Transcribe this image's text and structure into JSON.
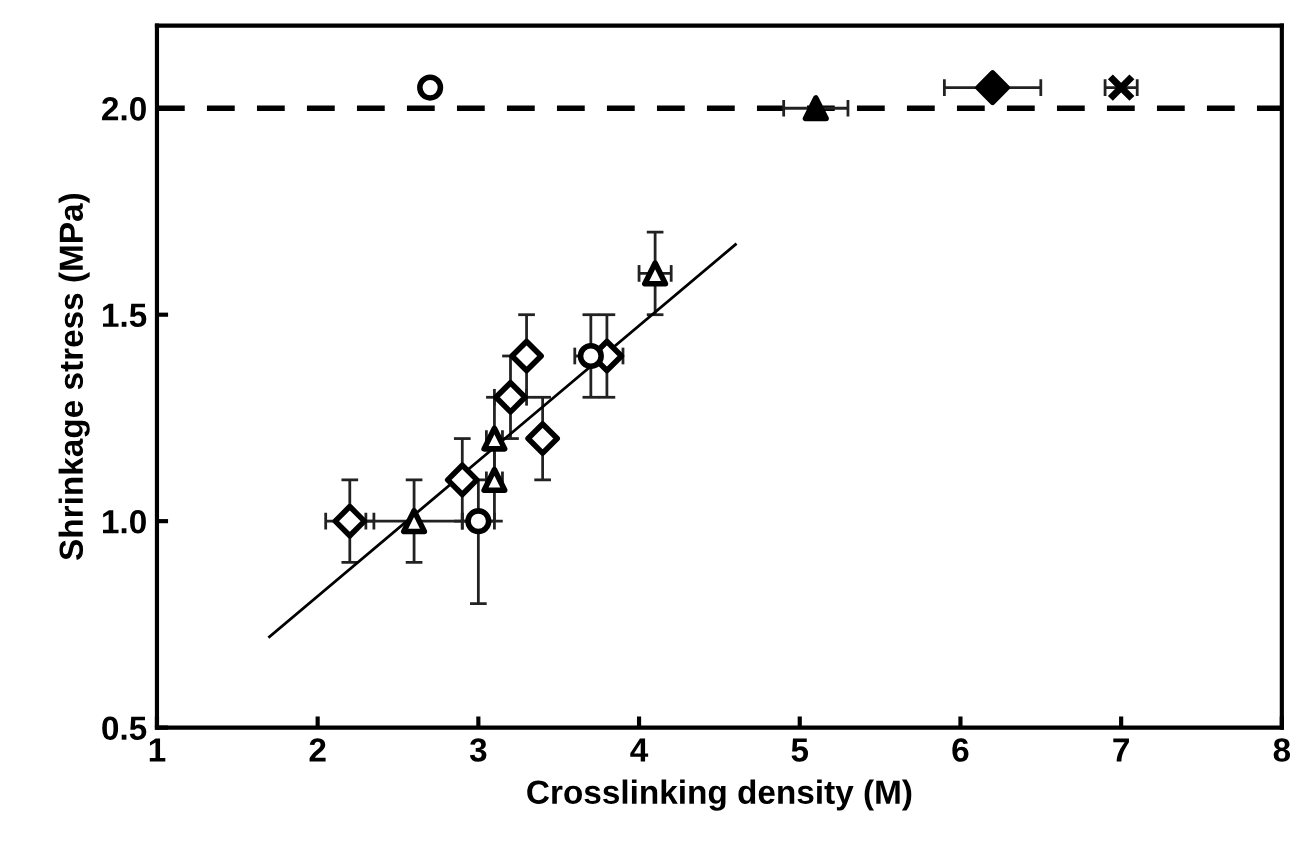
{
  "chart_data": {
    "type": "scatter",
    "xlabel": "Crosslinking density (M)",
    "ylabel": "Shrinkage stress (MPa)",
    "xlim": [
      1,
      8
    ],
    "ylim": [
      0.5,
      2.2
    ],
    "xticks": [
      1,
      2,
      3,
      4,
      5,
      6,
      7,
      8
    ],
    "yticks": [
      {
        "value": 0.5,
        "label": "0.5"
      },
      {
        "value": 1.0,
        "label": "1.0"
      },
      {
        "value": 1.5,
        "label": "1.5"
      },
      {
        "value": 2.0,
        "label": "2.0"
      }
    ],
    "grid": false,
    "series": [
      {
        "marker": "diamond",
        "color": "#ffffff",
        "x": [
          2.2,
          2.9,
          3.2,
          3.3,
          3.4,
          3.8
        ],
        "values": [
          1.0,
          1.1,
          1.3,
          1.4,
          1.2,
          1.4
        ],
        "errors": [
          0.1,
          0.1,
          0.1,
          0.1,
          0.1,
          0.1
        ],
        "xerrors": [
          0.15,
          0.05,
          0.1,
          0.05,
          0.05,
          0.1
        ]
      },
      {
        "marker": "triangle",
        "color": "#ffffff",
        "x": [
          2.6,
          3.1,
          3.1,
          4.1
        ],
        "values": [
          1.0,
          1.1,
          1.2,
          1.6
        ],
        "errors": [
          0.1,
          0.1,
          0.1,
          0.1
        ],
        "xerrors": [
          0.3,
          0.05,
          0.05,
          0.1
        ]
      },
      {
        "marker": "circle",
        "color": "#ffffff",
        "x": [
          3.0,
          3.7
        ],
        "values": [
          1.0,
          1.4
        ],
        "errors": [
          [
            0.8,
            1.1
          ],
          0.1
        ],
        "xerrors": [
          0.1,
          0.1
        ]
      },
      {
        "marker": "circle",
        "color": "#ffffff",
        "x": [
          2.7
        ],
        "values": [
          2.05
        ]
      },
      {
        "marker": "triangle",
        "color": "#000000",
        "x": [
          5.1
        ],
        "values": [
          2.0
        ],
        "xerrors": [
          0.2
        ]
      },
      {
        "marker": "diamond",
        "color": "#000000",
        "x": [
          6.2
        ],
        "values": [
          2.05
        ],
        "xerrors": [
          0.3
        ]
      },
      {
        "marker": "cross",
        "color": "#000000",
        "x": [
          7.0
        ],
        "values": [
          2.05
        ],
        "xerrors": [
          0.1
        ]
      },
      {
        "type": "line",
        "marker": "none",
        "line_style": "solid",
        "color": "#000000",
        "x": [
          1.7,
          4.6
        ],
        "values": [
          0.72,
          1.67
        ]
      }
    ],
    "ref_lines": [
      {
        "axis": "y",
        "value": 2.0,
        "label": null,
        "color": "#000000",
        "line_style": "dashed"
      }
    ]
  }
}
